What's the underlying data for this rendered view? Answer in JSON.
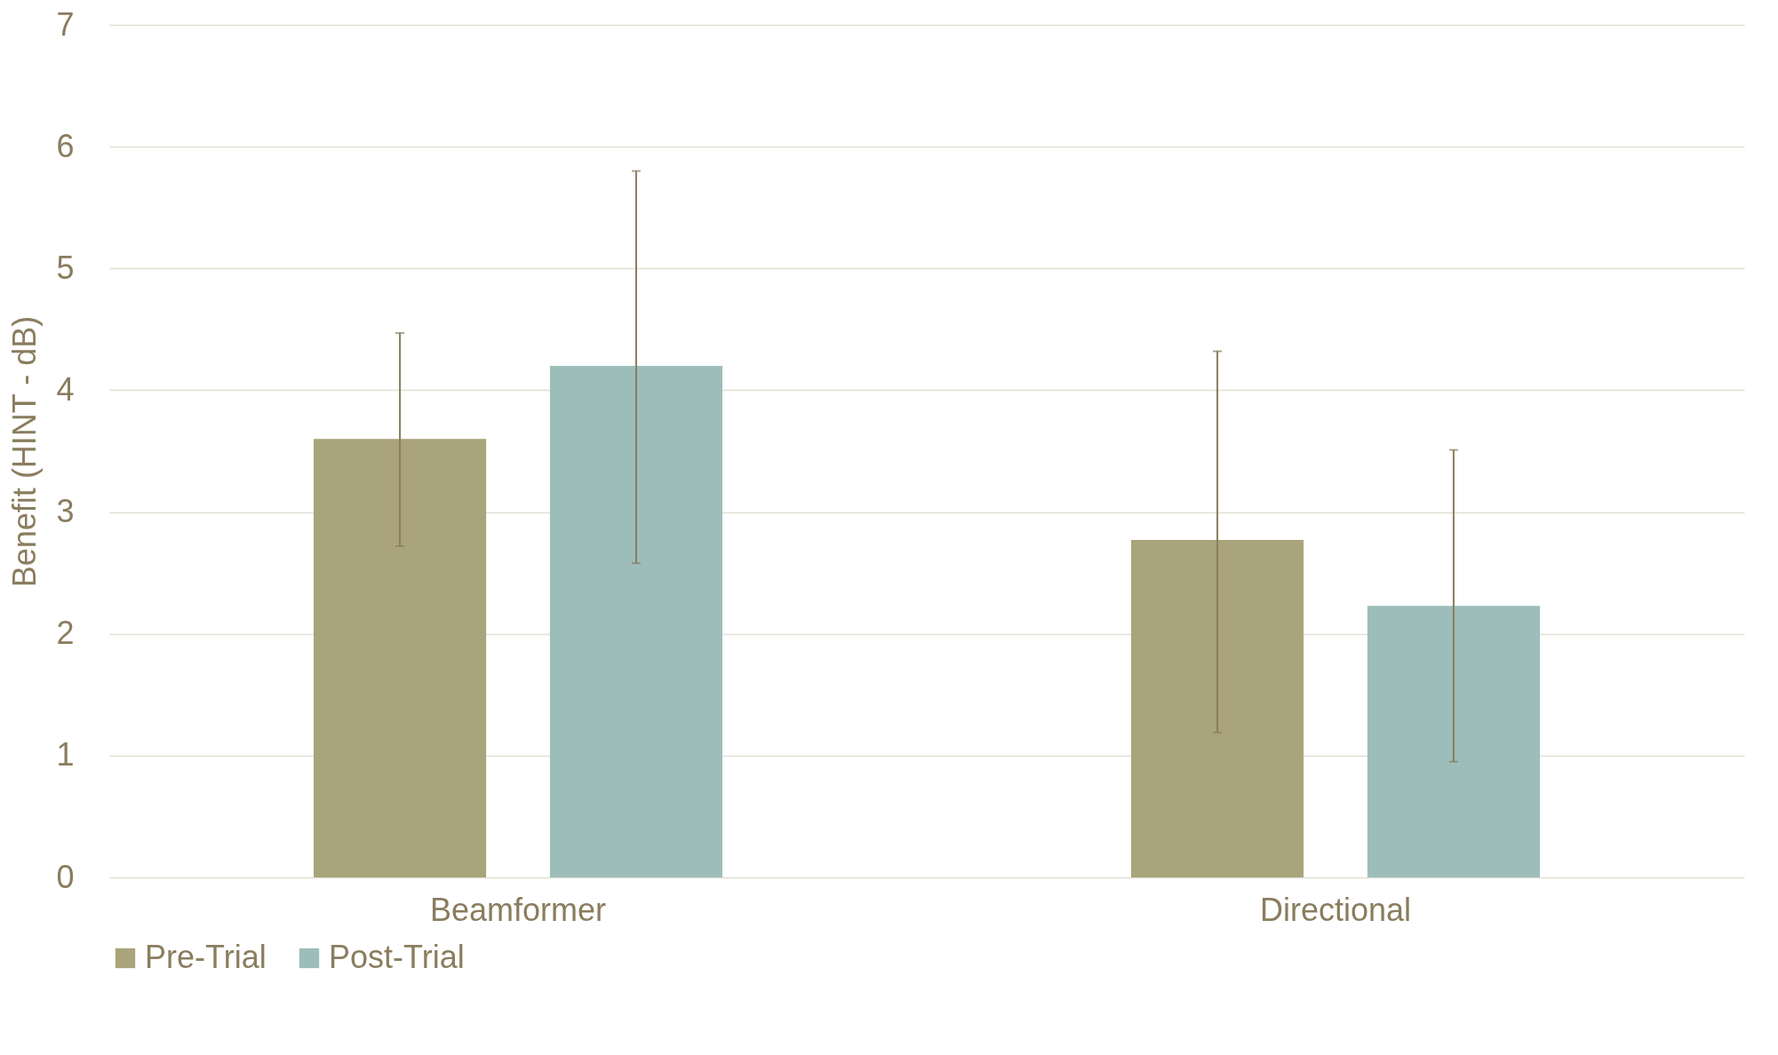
{
  "chart_data": {
    "type": "bar",
    "ylabel": "Benefit (HINT - dB)",
    "categories": [
      "Beamformer",
      "Directional"
    ],
    "series": [
      {
        "name": "Pre-Trial",
        "color": "#a9a47b",
        "values": [
          3.6,
          2.77
        ],
        "errors": [
          [
            2.72,
            4.47
          ],
          [
            1.19,
            4.32
          ]
        ]
      },
      {
        "name": "Post-Trial",
        "color": "#9dbdbb",
        "values": [
          4.2,
          2.23
        ],
        "errors": [
          [
            2.58,
            5.8
          ],
          [
            0.95,
            3.51
          ]
        ]
      }
    ],
    "ylim": [
      0,
      7
    ],
    "yticks": [
      0,
      1,
      2,
      3,
      4,
      5,
      6,
      7
    ],
    "grid": "y",
    "legend": "bottom"
  }
}
